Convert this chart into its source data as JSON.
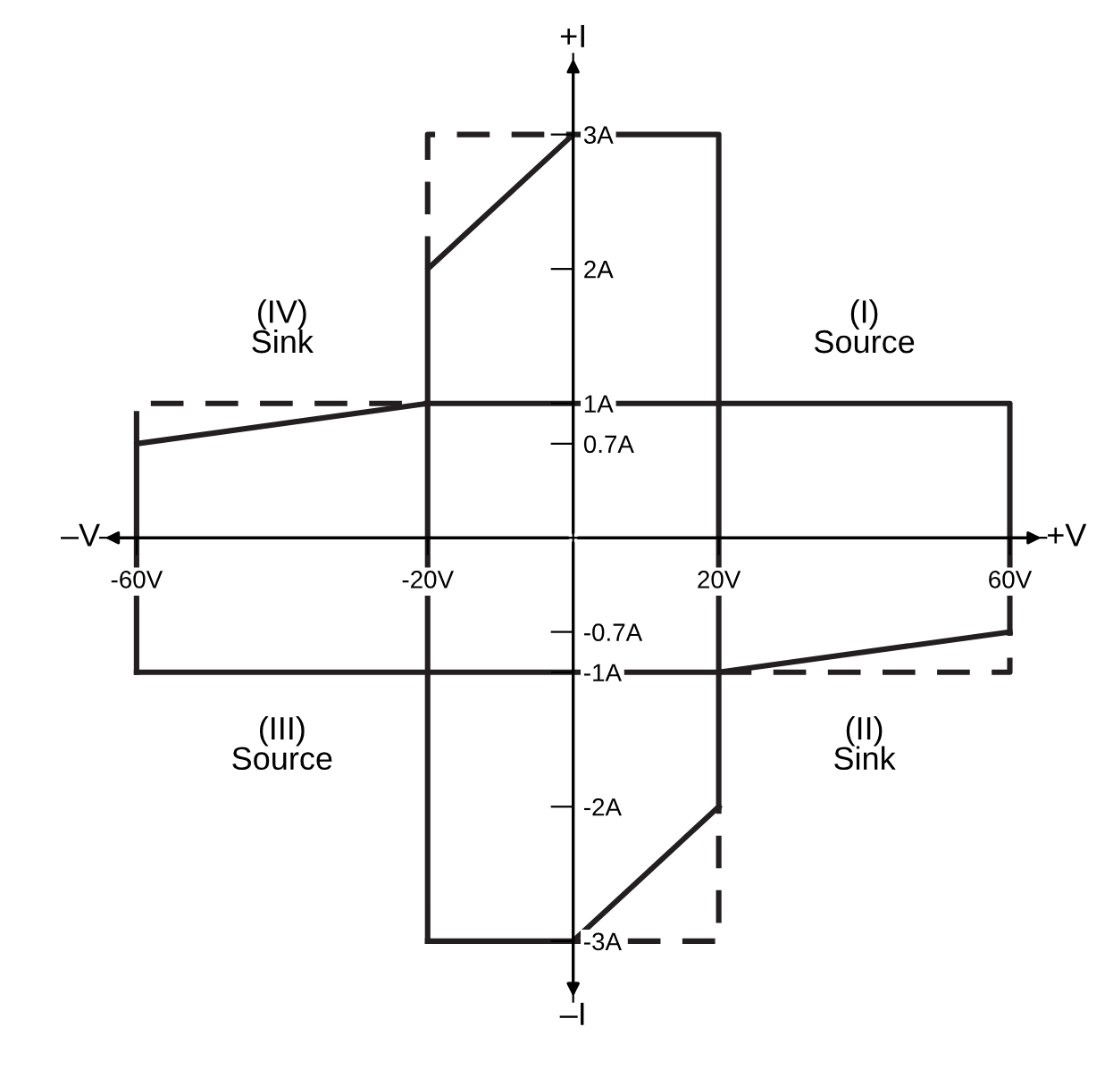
{
  "chart_data": {
    "type": "line",
    "xlabel": "+V",
    "ylabel": "+I",
    "annotations": [
      "(IV)\nSink",
      "(I)\nSource",
      "(III)\nSource",
      "(II)\nSink",
      "–V",
      "–I"
    ],
    "series": [
      {
        "color": "#231f20",
        "line_style": "solid",
        "x": [
          -20,
          -20,
          0,
          20,
          20
        ],
        "values": [
          -3,
          2,
          3,
          3,
          -2
        ]
      },
      {
        "color": "#231f20",
        "line_style": "solid",
        "x": [
          -20,
          0,
          20
        ],
        "values": [
          -3,
          -3,
          -2
        ]
      },
      {
        "color": "#231f20",
        "line_style": "solid",
        "x": [
          -60,
          -60,
          -20,
          60,
          60
        ],
        "values": [
          -1,
          0.7,
          1,
          1,
          -0.7
        ]
      },
      {
        "color": "#231f20",
        "line_style": "solid",
        "x": [
          -60,
          20,
          60
        ],
        "values": [
          -1,
          -1,
          -0.7
        ]
      },
      {
        "color": "#231f20",
        "line_style": "dashed",
        "x": [
          -20,
          -20,
          0
        ],
        "values": [
          2,
          3,
          3
        ]
      },
      {
        "color": "#231f20",
        "line_style": "dashed",
        "x": [
          0,
          20,
          20
        ],
        "values": [
          -3,
          -3,
          -2
        ]
      },
      {
        "color": "#231f20",
        "line_style": "dashed",
        "x": [
          -60,
          -60,
          -20
        ],
        "values": [
          0.7,
          1,
          1
        ]
      },
      {
        "color": "#231f20",
        "line_style": "dashed",
        "x": [
          20,
          60,
          60
        ],
        "values": [
          -1,
          -1,
          -0.7
        ]
      }
    ],
    "xlim": [
      -65,
      65
    ],
    "ylim": [
      -3.45,
      3.6
    ],
    "xticks": [
      {
        "value": -60,
        "label": "-60V"
      },
      {
        "value": -20,
        "label": "-20V"
      },
      {
        "value": 20,
        "label": "20V"
      },
      {
        "value": 60,
        "label": "60V"
      }
    ],
    "yticks": [
      {
        "value": 3,
        "label": "3A"
      },
      {
        "value": 2,
        "label": "2A"
      },
      {
        "value": 1,
        "label": "1A"
      },
      {
        "value": 0.7,
        "label": "0.7A"
      },
      {
        "value": -0.7,
        "label": "-0.7A"
      },
      {
        "value": -1,
        "label": "-1A"
      },
      {
        "value": -2,
        "label": "-2A"
      },
      {
        "value": -3,
        "label": "-3A"
      }
    ],
    "grid": false,
    "legend": false,
    "marker": "none"
  }
}
